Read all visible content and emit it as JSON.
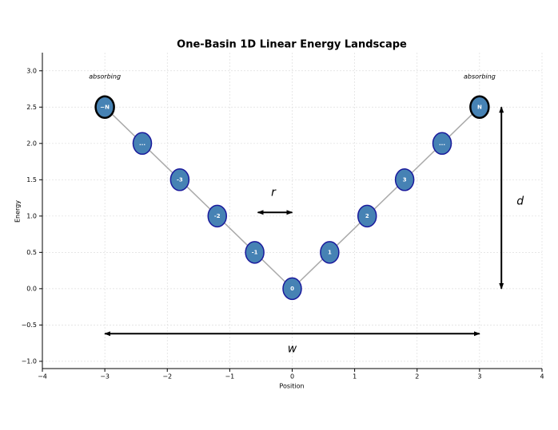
{
  "chart_data": {
    "type": "scatter",
    "title": "One-Basin 1D Linear Energy Landscape",
    "x_label": "Position",
    "y_label": "Energy",
    "xlim": [
      -4,
      4
    ],
    "ylim": [
      -1.1,
      3.25
    ],
    "xticks": [
      {
        "value": -4,
        "label": "−4"
      },
      {
        "value": -3,
        "label": "−3"
      },
      {
        "value": -2,
        "label": "−2"
      },
      {
        "value": -1,
        "label": "−1"
      },
      0,
      1,
      2,
      3,
      4
    ],
    "yticks": [
      {
        "value": -1,
        "label": "−1.0"
      },
      {
        "value": -0.5,
        "label": "−0.5"
      },
      {
        "value": 0,
        "label": "0.0"
      },
      0.5,
      {
        "value": 1,
        "label": "1.0"
      },
      1.5,
      {
        "value": 2,
        "label": "2.0"
      },
      2.5,
      {
        "value": 3,
        "label": "3.0"
      }
    ],
    "grid": true,
    "line_color": "#aaaaaa",
    "series": [
      {
        "color": "#4682b4",
        "x": [
          -3,
          -2.4,
          -1.8,
          -1.2,
          -0.6,
          0,
          0.6,
          1.2,
          1.8,
          2.4,
          3
        ],
        "values": [
          2.5,
          2.0,
          1.5,
          1.0,
          0.5,
          0,
          0.5,
          1.0,
          1.5,
          2.0,
          2.5
        ],
        "point_labels": [
          "−N",
          "...",
          "-3",
          "-2",
          "-1",
          "0",
          "1",
          "2",
          "3",
          "...",
          "N"
        ],
        "edgecolors": [
          "#000000",
          "#1a1a9c",
          "#1a1a9c",
          "#1a1a9c",
          "#1a1a9c",
          "#1a1a9c",
          "#1a1a9c",
          "#1a1a9c",
          "#1a1a9c",
          "#1a1a9c",
          "#000000"
        ],
        "edge_widths": [
          2.5,
          1.5,
          1.5,
          1.5,
          1.5,
          1.5,
          1.5,
          1.5,
          1.5,
          1.5,
          2.5
        ]
      }
    ],
    "annotations": [
      {
        "text": "absorbing",
        "x": -3,
        "y": 2.92,
        "style": "italic",
        "size": 8
      },
      {
        "text": "absorbing",
        "x": 3,
        "y": 2.92,
        "style": "italic",
        "size": 8
      },
      {
        "text": "r",
        "x": -0.3,
        "y": 1.32,
        "style": "italic",
        "size": 14
      },
      {
        "text": "d",
        "x": 3.65,
        "y": 1.2,
        "style": "italic",
        "size": 14
      },
      {
        "text": "w",
        "x": 0,
        "y": -0.83,
        "style": "italic",
        "size": 14
      }
    ],
    "arrows": [
      {
        "x": [
          -0.55,
          0
        ],
        "y": [
          1.05,
          1.05
        ]
      },
      {
        "x": [
          3.35,
          3.35
        ],
        "y": [
          0,
          2.5
        ]
      },
      {
        "x": [
          -3,
          3
        ],
        "y": [
          -0.62,
          -0.62
        ]
      }
    ]
  }
}
